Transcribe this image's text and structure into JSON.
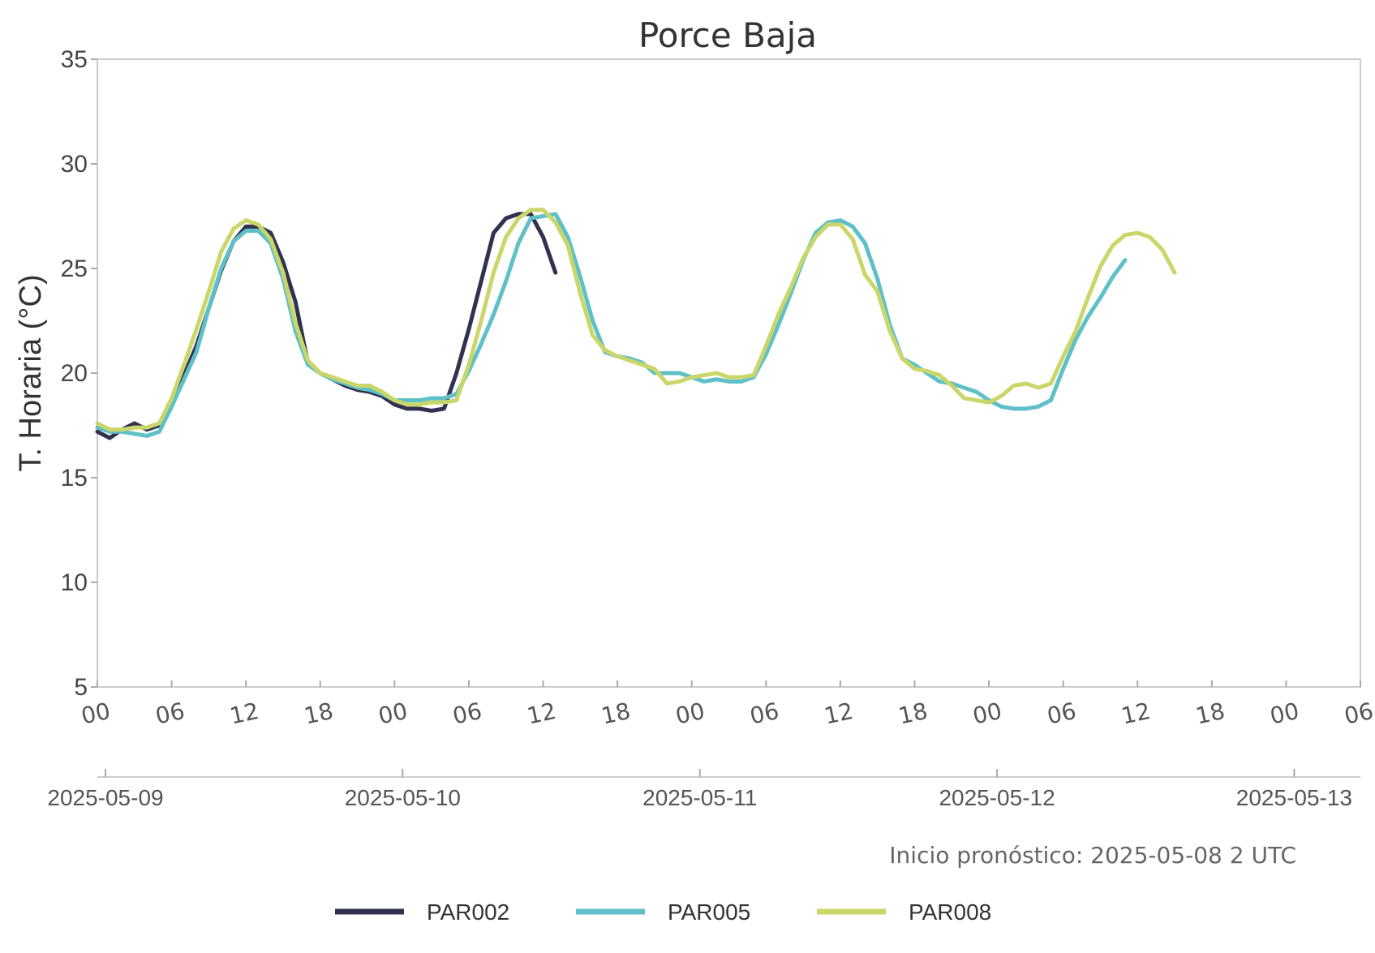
{
  "chart_data": {
    "type": "line",
    "title": "Porce Baja",
    "ylabel": "T. Horaria (°C)",
    "xlabel": "",
    "ylim": [
      5,
      35
    ],
    "yticks": [
      "5",
      "10",
      "15",
      "20",
      "25",
      "30",
      "35"
    ],
    "xlim": [
      0,
      102
    ],
    "hour_ticks": [
      "00",
      "06",
      "12",
      "18",
      "00",
      "06",
      "12",
      "18",
      "00",
      "06",
      "12",
      "18",
      "00",
      "06",
      "12",
      "18",
      "00",
      "06"
    ],
    "date_ticks": [
      "2025-05-09",
      "2025-05-10",
      "2025-05-11",
      "2025-05-12",
      "2025-05-13"
    ],
    "annotation": "Inicio pronóstico: 2025-05-08 2 UTC",
    "grid": false,
    "legend_position": "bottom",
    "series": [
      {
        "name": "PAR002",
        "color": "#30324f",
        "values": [
          17.2,
          16.9,
          17.3,
          17.6,
          17.3,
          17.5,
          18.6,
          19.9,
          21.3,
          23.1,
          24.9,
          26.3,
          27.0,
          27.0,
          26.7,
          25.3,
          23.4,
          20.5,
          20.0,
          19.7,
          19.4,
          19.2,
          19.1,
          18.9,
          18.5,
          18.3,
          18.3,
          18.2,
          18.3,
          20.0,
          22.1,
          24.4,
          26.7,
          27.4,
          27.6,
          27.6,
          26.5,
          24.8
        ],
        "x_start": 0
      },
      {
        "name": "PAR005",
        "color": "#5fc0c8",
        "values": [
          17.4,
          17.2,
          17.2,
          17.1,
          17.0,
          17.2,
          18.4,
          19.7,
          21.0,
          23.1,
          25.0,
          26.3,
          26.8,
          26.8,
          26.2,
          24.5,
          22.0,
          20.4,
          20.0,
          19.7,
          19.5,
          19.3,
          19.2,
          19.0,
          18.7,
          18.7,
          18.7,
          18.8,
          18.8,
          19.0,
          20.1,
          21.4,
          22.8,
          24.4,
          26.2,
          27.4,
          27.5,
          27.6,
          26.5,
          24.6,
          22.5,
          21.0,
          20.8,
          20.7,
          20.5,
          20.0,
          20.0,
          20.0,
          19.8,
          19.6,
          19.7,
          19.6,
          19.6,
          19.8,
          20.9,
          22.3,
          23.8,
          25.4,
          26.7,
          27.2,
          27.3,
          27.0,
          26.2,
          24.5,
          22.3,
          20.7,
          20.4,
          20.0,
          19.6,
          19.5,
          19.3,
          19.1,
          18.7,
          18.4,
          18.3,
          18.3,
          18.4,
          18.7,
          20.2,
          21.6,
          22.7,
          23.6,
          24.6,
          25.4
        ],
        "x_start": 0
      },
      {
        "name": "PAR008",
        "color": "#cbd66a",
        "values": [
          17.6,
          17.3,
          17.3,
          17.4,
          17.4,
          17.6,
          18.8,
          20.4,
          22.1,
          23.9,
          25.8,
          26.9,
          27.3,
          27.1,
          26.4,
          24.8,
          22.4,
          20.6,
          20.0,
          19.8,
          19.6,
          19.4,
          19.4,
          19.1,
          18.7,
          18.5,
          18.5,
          18.6,
          18.6,
          18.7,
          20.4,
          22.5,
          24.8,
          26.5,
          27.4,
          27.8,
          27.8,
          27.2,
          26.1,
          23.8,
          21.8,
          21.1,
          20.8,
          20.6,
          20.4,
          20.2,
          19.5,
          19.6,
          19.8,
          19.9,
          20.0,
          19.8,
          19.8,
          19.9,
          21.3,
          22.8,
          24.1,
          25.5,
          26.5,
          27.1,
          27.1,
          26.4,
          24.7,
          23.9,
          22.0,
          20.7,
          20.2,
          20.1,
          19.9,
          19.4,
          18.8,
          18.7,
          18.6,
          18.9,
          19.4,
          19.5,
          19.3,
          19.5,
          20.8,
          22.0,
          23.6,
          25.1,
          26.1,
          26.6,
          26.7,
          26.5,
          25.9,
          24.8
        ],
        "x_start": 0
      }
    ]
  }
}
